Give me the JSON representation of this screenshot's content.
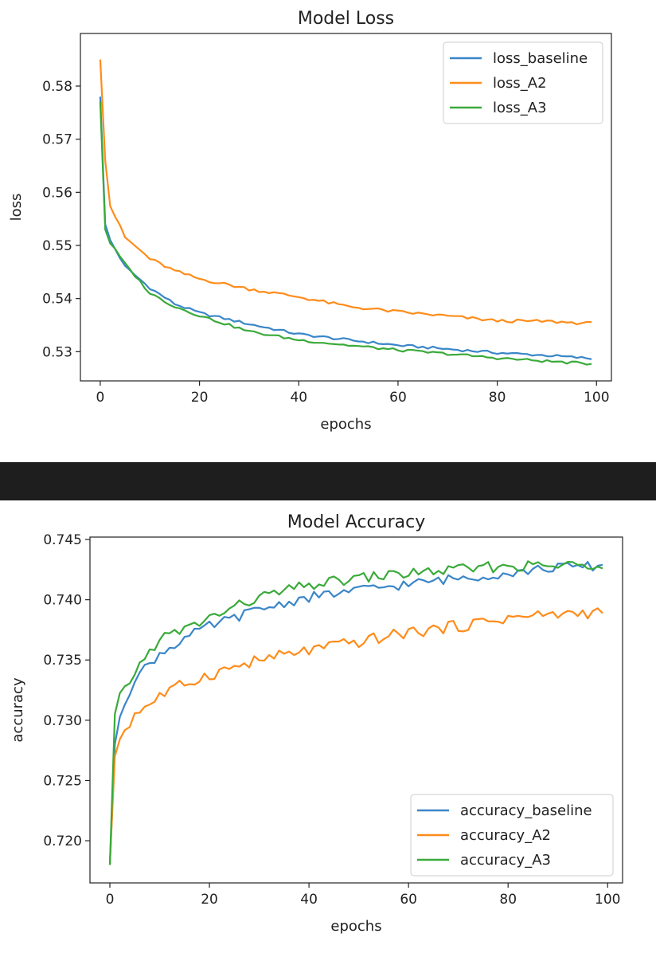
{
  "colors": {
    "baseline": "#3a86c8",
    "a2": "#ff8c1a",
    "a3": "#3aaa3a",
    "separator": "#1e1e1e"
  },
  "chart_data": [
    {
      "type": "line",
      "title": "Model Loss",
      "xlabel": "epochs",
      "ylabel": "loss",
      "xlim": [
        -4,
        103
      ],
      "ylim": [
        0.5245,
        0.5899
      ],
      "xticks": [
        0,
        20,
        40,
        60,
        80,
        100
      ],
      "yticks": [
        0.53,
        0.54,
        0.55,
        0.56,
        0.57,
        0.58
      ],
      "xtick_labels": [
        "0",
        "20",
        "40",
        "60",
        "80",
        "100"
      ],
      "ytick_labels": [
        "0.53",
        "0.54",
        "0.55",
        "0.56",
        "0.57",
        "0.58"
      ],
      "grid": false,
      "legend_position": "top-right",
      "series": [
        {
          "name": "loss_baseline",
          "color_key": "baseline",
          "anchors": [
            [
              0,
              0.578
            ],
            [
              1,
              0.554
            ],
            [
              2,
              0.551
            ],
            [
              5,
              0.546
            ],
            [
              10,
              0.542
            ],
            [
              15,
              0.539
            ],
            [
              20,
              0.5373
            ],
            [
              30,
              0.5352
            ],
            [
              40,
              0.5333
            ],
            [
              50,
              0.5322
            ],
            [
              60,
              0.5312
            ],
            [
              70,
              0.5305
            ],
            [
              80,
              0.5298
            ],
            [
              90,
              0.5293
            ],
            [
              99,
              0.5287
            ]
          ],
          "amp": 0.00025
        },
        {
          "name": "loss_A2",
          "color_key": "a2",
          "anchors": [
            [
              0,
              0.585
            ],
            [
              1,
              0.566
            ],
            [
              2,
              0.5575
            ],
            [
              5,
              0.5515
            ],
            [
              10,
              0.5475
            ],
            [
              15,
              0.5452
            ],
            [
              20,
              0.5437
            ],
            [
              30,
              0.5418
            ],
            [
              40,
              0.5403
            ],
            [
              50,
              0.5385
            ],
            [
              60,
              0.5375
            ],
            [
              70,
              0.5367
            ],
            [
              80,
              0.5358
            ],
            [
              90,
              0.5357
            ],
            [
              99,
              0.5353
            ]
          ],
          "amp": 0.0003
        },
        {
          "name": "loss_A3",
          "color_key": "a3",
          "anchors": [
            [
              0,
              0.577
            ],
            [
              1,
              0.553
            ],
            [
              2,
              0.5505
            ],
            [
              5,
              0.5465
            ],
            [
              10,
              0.541
            ],
            [
              15,
              0.5385
            ],
            [
              20,
              0.5368
            ],
            [
              30,
              0.5338
            ],
            [
              40,
              0.5322
            ],
            [
              50,
              0.5312
            ],
            [
              60,
              0.5303
            ],
            [
              70,
              0.5296
            ],
            [
              80,
              0.5288
            ],
            [
              90,
              0.5282
            ],
            [
              99,
              0.5277
            ]
          ],
          "amp": 0.00025
        }
      ]
    },
    {
      "type": "line",
      "title": "Model Accuracy",
      "xlabel": "epochs",
      "ylabel": "accuracy",
      "xlim": [
        -4,
        103
      ],
      "ylim": [
        0.7165,
        0.7452
      ],
      "xticks": [
        0,
        20,
        40,
        60,
        80,
        100
      ],
      "yticks": [
        0.72,
        0.725,
        0.73,
        0.735,
        0.74,
        0.745
      ],
      "xtick_labels": [
        "0",
        "20",
        "40",
        "60",
        "80",
        "100"
      ],
      "ytick_labels": [
        "0.720",
        "0.725",
        "0.730",
        "0.735",
        "0.740",
        "0.745"
      ],
      "grid": false,
      "legend_position": "bottom-right",
      "series": [
        {
          "name": "accuracy_baseline",
          "color_key": "baseline",
          "anchors": [
            [
              0,
              0.718
            ],
            [
              1,
              0.728
            ],
            [
              2,
              0.7305
            ],
            [
              5,
              0.7335
            ],
            [
              10,
              0.7355
            ],
            [
              15,
              0.7368
            ],
            [
              20,
              0.7378
            ],
            [
              30,
              0.7392
            ],
            [
              40,
              0.7402
            ],
            [
              50,
              0.7408
            ],
            [
              60,
              0.7413
            ],
            [
              70,
              0.7418
            ],
            [
              80,
              0.7422
            ],
            [
              90,
              0.7427
            ],
            [
              99,
              0.7428
            ]
          ],
          "amp": 0.0004
        },
        {
          "name": "accuracy_A2",
          "color_key": "a2",
          "anchors": [
            [
              0,
              0.718
            ],
            [
              1,
              0.727
            ],
            [
              2,
              0.7285
            ],
            [
              5,
              0.7305
            ],
            [
              10,
              0.732
            ],
            [
              15,
              0.733
            ],
            [
              20,
              0.7338
            ],
            [
              30,
              0.735
            ],
            [
              40,
              0.7358
            ],
            [
              50,
              0.7365
            ],
            [
              60,
              0.7373
            ],
            [
              70,
              0.7378
            ],
            [
              80,
              0.7385
            ],
            [
              90,
              0.7388
            ],
            [
              99,
              0.739
            ]
          ],
          "amp": 0.0005
        },
        {
          "name": "accuracy_A3",
          "color_key": "a3",
          "anchors": [
            [
              0,
              0.718
            ],
            [
              1,
              0.7305
            ],
            [
              2,
              0.7318
            ],
            [
              5,
              0.734
            ],
            [
              10,
              0.7368
            ],
            [
              15,
              0.7375
            ],
            [
              20,
              0.7385
            ],
            [
              30,
              0.7402
            ],
            [
              40,
              0.7412
            ],
            [
              50,
              0.7418
            ],
            [
              60,
              0.7422
            ],
            [
              70,
              0.7425
            ],
            [
              80,
              0.7428
            ],
            [
              90,
              0.7428
            ],
            [
              99,
              0.743
            ]
          ],
          "amp": 0.00045
        }
      ]
    }
  ]
}
